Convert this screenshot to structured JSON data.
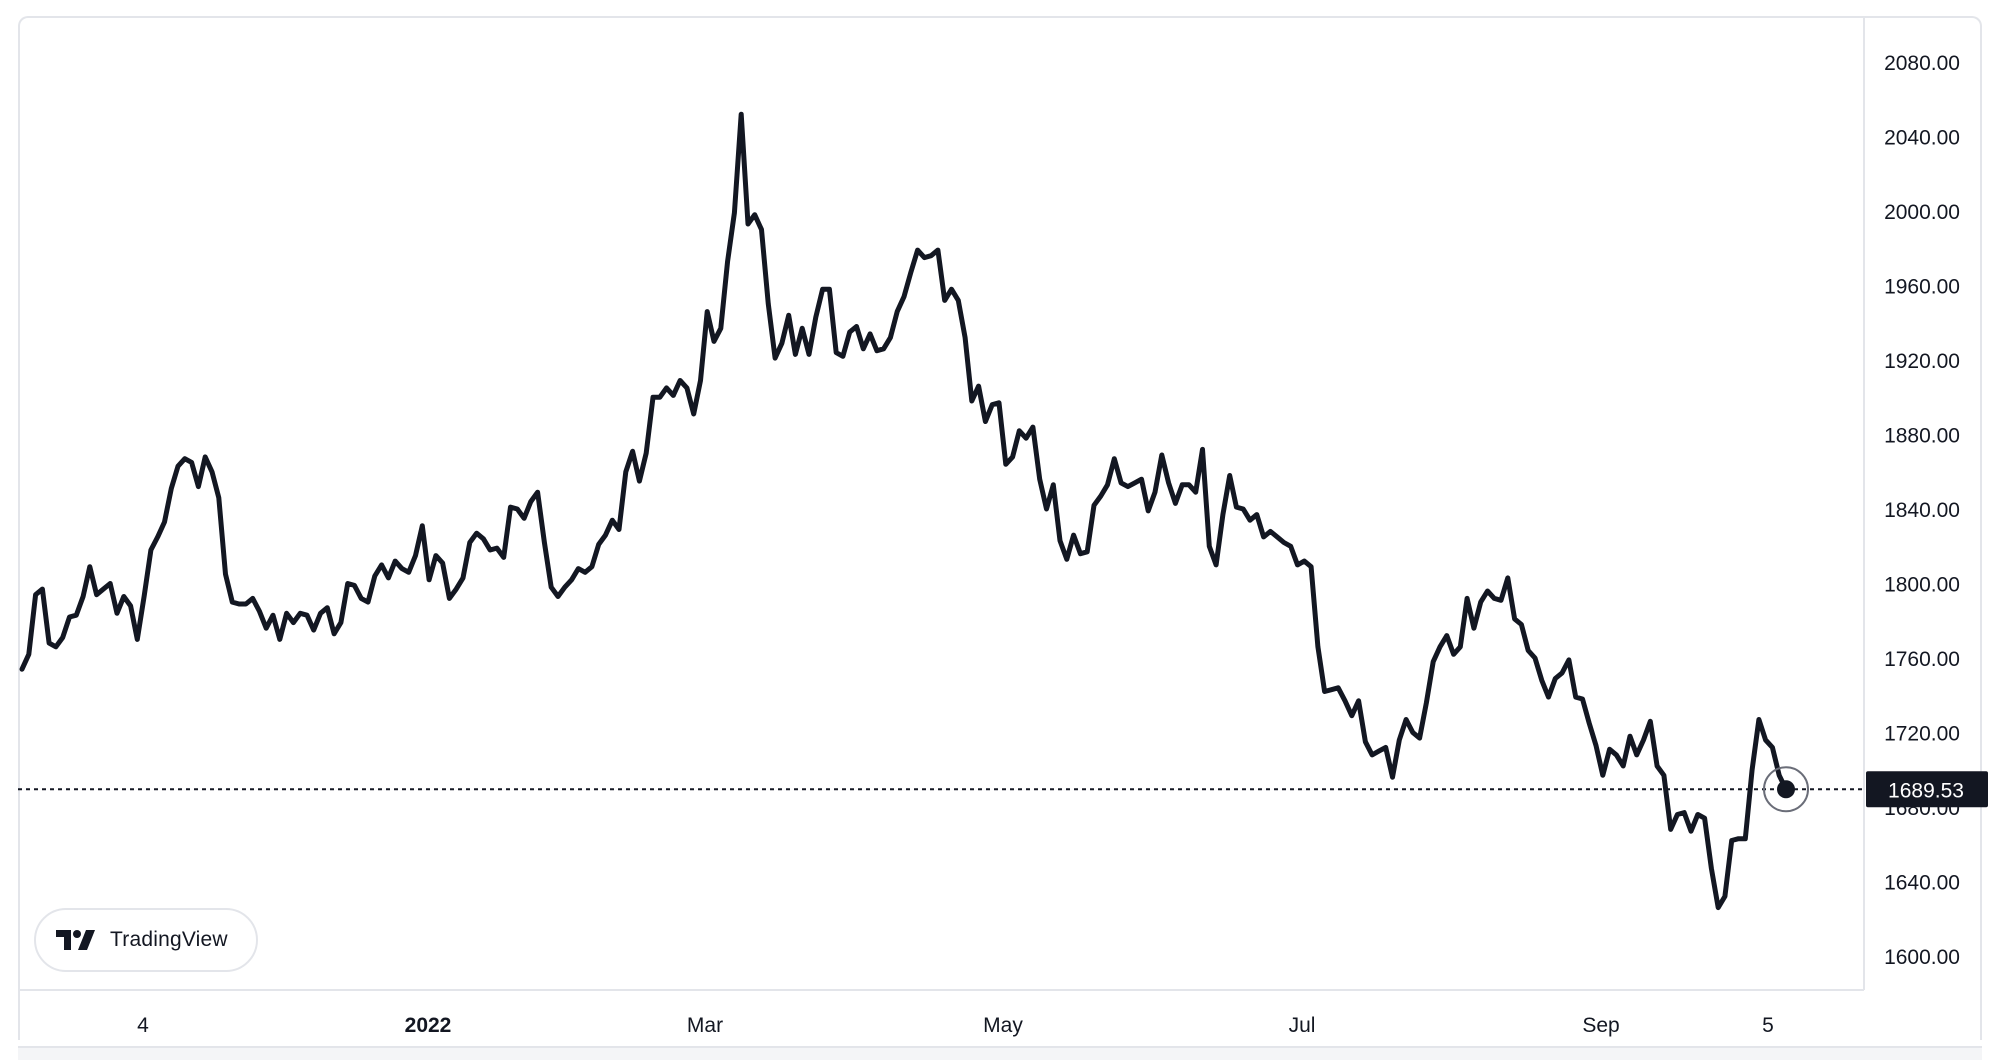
{
  "chart_data": {
    "type": "line",
    "title": "",
    "xlabel": "",
    "ylabel": "",
    "price_scale": [
      "2080.00",
      "2040.00",
      "2000.00",
      "1960.00",
      "1920.00",
      "1880.00",
      "1840.00",
      "1800.00",
      "1760.00",
      "1720.00",
      "1680.00",
      "1640.00",
      "1600.00"
    ],
    "time_scale": [
      "4",
      "2022",
      "Mar",
      "May",
      "Jul",
      "Sep",
      "5"
    ],
    "ylim": [
      1580,
      2100
    ],
    "last_price_label": "1689.53",
    "series": [
      {
        "color": "#131722",
        "values": [
          1754,
          1762,
          1794,
          1797,
          1768,
          1766,
          1771,
          1782,
          1783,
          1793,
          1809,
          1794,
          1797,
          1800,
          1784,
          1793,
          1788,
          1770,
          1793,
          1818,
          1825,
          1833,
          1851,
          1863,
          1867,
          1865,
          1852,
          1868,
          1860,
          1846,
          1805,
          1790,
          1789,
          1789,
          1792,
          1785,
          1776,
          1783,
          1770,
          1784,
          1779,
          1784,
          1783,
          1775,
          1784,
          1787,
          1773,
          1779,
          1800,
          1799,
          1792,
          1790,
          1804,
          1810,
          1803,
          1812,
          1808,
          1806,
          1815,
          1831,
          1802,
          1815,
          1811,
          1792,
          1797,
          1803,
          1822,
          1827,
          1824,
          1818,
          1819,
          1814,
          1841,
          1840,
          1835,
          1844,
          1849,
          1822,
          1798,
          1793,
          1798,
          1802,
          1808,
          1806,
          1809,
          1821,
          1826,
          1834,
          1829,
          1860,
          1871,
          1855,
          1870,
          1900,
          1900,
          1905,
          1901,
          1909,
          1905,
          1891,
          1909,
          1946,
          1930,
          1937,
          1973,
          1999,
          2052,
          1993,
          1998,
          1990,
          1950,
          1921,
          1929,
          1944,
          1923,
          1937,
          1923,
          1943,
          1958,
          1958,
          1924,
          1922,
          1935,
          1938,
          1926,
          1934,
          1925,
          1926,
          1932,
          1946,
          1954,
          1967,
          1979,
          1975,
          1976,
          1979,
          1952,
          1958,
          1952,
          1932,
          1898,
          1906,
          1887,
          1896,
          1897,
          1864,
          1868,
          1882,
          1878,
          1884,
          1856,
          1840,
          1853,
          1823,
          1813,
          1826,
          1816,
          1817,
          1842,
          1847,
          1853,
          1867,
          1854,
          1852,
          1854,
          1856,
          1839,
          1849,
          1869,
          1854,
          1843,
          1853,
          1853,
          1849,
          1872,
          1820,
          1810,
          1837,
          1858,
          1841,
          1840,
          1834,
          1837,
          1825,
          1828,
          1825,
          1822,
          1820,
          1810,
          1812,
          1809,
          1766,
          1742,
          1743,
          1744,
          1737,
          1729,
          1737,
          1715,
          1708,
          1710,
          1712,
          1696,
          1716,
          1727,
          1720,
          1717,
          1736,
          1758,
          1766,
          1772,
          1762,
          1766,
          1792,
          1776,
          1790,
          1796,
          1792,
          1791,
          1803,
          1781,
          1778,
          1764,
          1760,
          1748,
          1739,
          1749,
          1752,
          1759,
          1739,
          1738,
          1725,
          1713,
          1697,
          1711,
          1708,
          1702,
          1718,
          1708,
          1716,
          1726,
          1702,
          1697,
          1668,
          1676,
          1677,
          1667,
          1676,
          1674,
          1647,
          1626,
          1632,
          1662,
          1663,
          1663,
          1700,
          1727,
          1716,
          1712,
          1697,
          1689.53
        ]
      }
    ]
  },
  "branding": {
    "logo_icon": "tradingview-logo-icon",
    "text": "TradingView"
  },
  "colors": {
    "line": "#131722",
    "label_bg": "#131722",
    "label_text": "#ffffff",
    "border": "#e3e5ea"
  }
}
